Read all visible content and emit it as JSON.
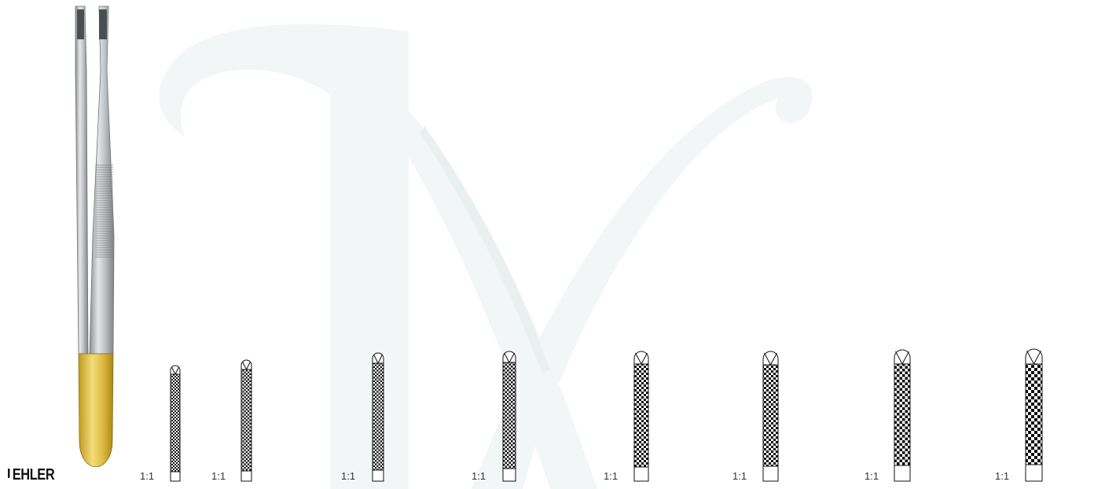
{
  "brand": {
    "name": "EHLER"
  },
  "colors": {
    "steel": "#b7bbbd",
    "gold": "#d8b434",
    "pattern": "#111111",
    "watermark": "#f3f6f6"
  },
  "tips": [
    {
      "scale": "1:1"
    },
    {
      "scale": "1:1"
    },
    {
      "scale": "1:1"
    },
    {
      "scale": "1:1"
    },
    {
      "scale": "1:1"
    },
    {
      "scale": "1:1"
    },
    {
      "scale": "1:1"
    },
    {
      "scale": "1:1"
    }
  ]
}
